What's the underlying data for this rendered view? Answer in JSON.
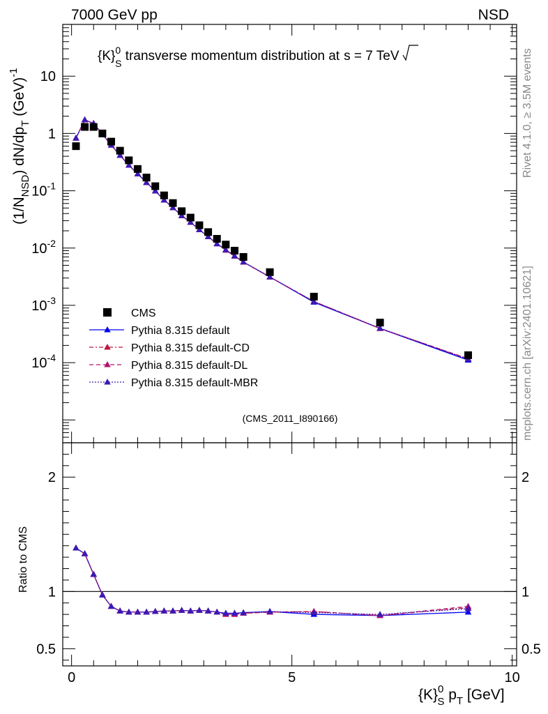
{
  "header": {
    "left": "7000 GeV pp",
    "right": "NSD"
  },
  "side": {
    "events": "Rivet 4.1.0, ≥ 3.5M events",
    "source": "mcplots.cern.ch [arXiv:2401.10621]"
  },
  "chart_data": {
    "type": "scatter",
    "title": {
      "pre": "{K}",
      "sup": "0",
      "sub": "S",
      "main": " transverse momentum distribution at",
      "sqrt": "s",
      "post": " = 7 TeV"
    },
    "analysis_tag": "(CMS_2011_I890166)",
    "ylabel": {
      "a": "(1/N",
      "a_sub": "NSD",
      "b": ") dN/dp",
      "b_sub": "T",
      "c": " (GeV)",
      "c_sup": "-1"
    },
    "xlabel": {
      "pre": "{K}",
      "sup": "0",
      "sub": "S",
      "mid": " p",
      "sub2": "T",
      "post": " [GeV]"
    },
    "ratio_ylabel": "Ratio to CMS",
    "xlim": [
      -0.2,
      10.1
    ],
    "ylim_log": [
      4e-06,
      80
    ],
    "ratio_ylim": [
      0.35,
      2.3
    ],
    "x_ticks": [
      "0",
      "5",
      "10"
    ],
    "y_ticks": [
      {
        "base": "10",
        "exp": "-4"
      },
      {
        "base": "10",
        "exp": "-3"
      },
      {
        "base": "10",
        "exp": "-2"
      },
      {
        "base": "10",
        "exp": "-1"
      },
      {
        "base": "1",
        "exp": ""
      },
      {
        "base": "10",
        "exp": ""
      }
    ],
    "ratio_ticks": [
      "0.5",
      "1",
      "2"
    ],
    "cms": {
      "x": [
        0.1,
        0.3,
        0.5,
        0.7,
        0.9,
        1.1,
        1.3,
        1.5,
        1.7,
        1.9,
        2.1,
        2.3,
        2.5,
        2.7,
        2.9,
        3.1,
        3.3,
        3.5,
        3.7,
        3.9,
        4.5,
        5.5,
        7.0,
        9.0
      ],
      "y": [
        0.6,
        1.3,
        1.3,
        1.0,
        0.72,
        0.5,
        0.34,
        0.24,
        0.17,
        0.12,
        0.083,
        0.061,
        0.044,
        0.034,
        0.025,
        0.019,
        0.0145,
        0.0115,
        0.009,
        0.007,
        0.0038,
        0.00142,
        0.0005,
        0.000135
      ]
    },
    "ratios": {
      "default": [
        1.38,
        1.33,
        1.15,
        0.97,
        0.87,
        0.83,
        0.82,
        0.82,
        0.82,
        0.825,
        0.83,
        0.83,
        0.835,
        0.83,
        0.835,
        0.83,
        0.82,
        0.81,
        0.81,
        0.815,
        0.825,
        0.8,
        0.79,
        0.82
      ],
      "cd": [
        1.38,
        1.33,
        1.15,
        0.97,
        0.87,
        0.83,
        0.82,
        0.82,
        0.82,
        0.825,
        0.83,
        0.83,
        0.835,
        0.83,
        0.835,
        0.83,
        0.82,
        0.8,
        0.8,
        0.81,
        0.82,
        0.825,
        0.79,
        0.86
      ],
      "dl": [
        1.38,
        1.33,
        1.15,
        0.97,
        0.87,
        0.83,
        0.82,
        0.82,
        0.82,
        0.825,
        0.83,
        0.83,
        0.835,
        0.83,
        0.835,
        0.83,
        0.82,
        0.8,
        0.8,
        0.81,
        0.82,
        0.825,
        0.79,
        0.87
      ],
      "mbr": [
        1.38,
        1.33,
        1.15,
        0.97,
        0.87,
        0.83,
        0.82,
        0.82,
        0.82,
        0.825,
        0.83,
        0.83,
        0.835,
        0.83,
        0.835,
        0.83,
        0.82,
        0.81,
        0.81,
        0.815,
        0.825,
        0.815,
        0.8,
        0.85
      ]
    },
    "series": [
      {
        "key": "cms",
        "name": "CMS",
        "color": "#000000",
        "style": "marker"
      },
      {
        "key": "default",
        "name": "Pythia 8.315 default",
        "color": "#0000ee",
        "style": "solid"
      },
      {
        "key": "cd",
        "name": "Pythia 8.315 default-CD",
        "color": "#c0143c",
        "style": "dashdot"
      },
      {
        "key": "dl",
        "name": "Pythia 8.315 default-DL",
        "color": "#b4136e",
        "style": "dashed"
      },
      {
        "key": "mbr",
        "name": "Pythia 8.315 default-MBR",
        "color": "#3a1ab5",
        "style": "dotted"
      }
    ]
  }
}
